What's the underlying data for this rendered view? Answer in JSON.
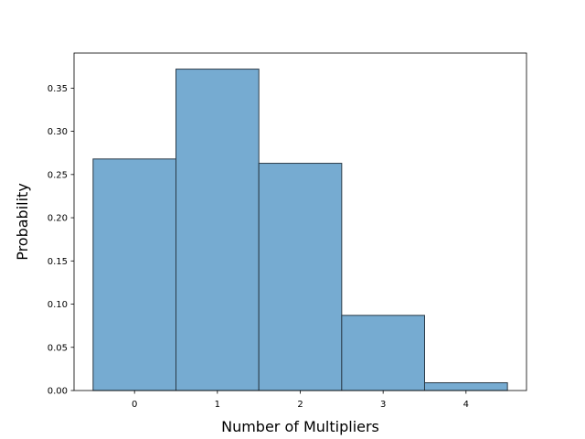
{
  "chart_data": {
    "type": "bar",
    "categories": [
      "0",
      "1",
      "2",
      "3",
      "4"
    ],
    "x": [
      0,
      1,
      2,
      3,
      4
    ],
    "values": [
      0.268,
      0.372,
      0.263,
      0.087,
      0.009
    ],
    "title": "",
    "xlabel": "Number of Multipliers",
    "ylabel": "Probability",
    "xlim": [
      -0.73,
      4.73
    ],
    "ylim": [
      0,
      0.3906
    ],
    "yticks": [
      0.0,
      0.05,
      0.1,
      0.15,
      0.2,
      0.25,
      0.3,
      0.35
    ],
    "ytick_labels": [
      "0.00",
      "0.05",
      "0.10",
      "0.15",
      "0.20",
      "0.25",
      "0.30",
      "0.35"
    ],
    "grid": false,
    "legend": "none",
    "bar_color": "#76abd1",
    "edge_color": "#2b3b48"
  }
}
